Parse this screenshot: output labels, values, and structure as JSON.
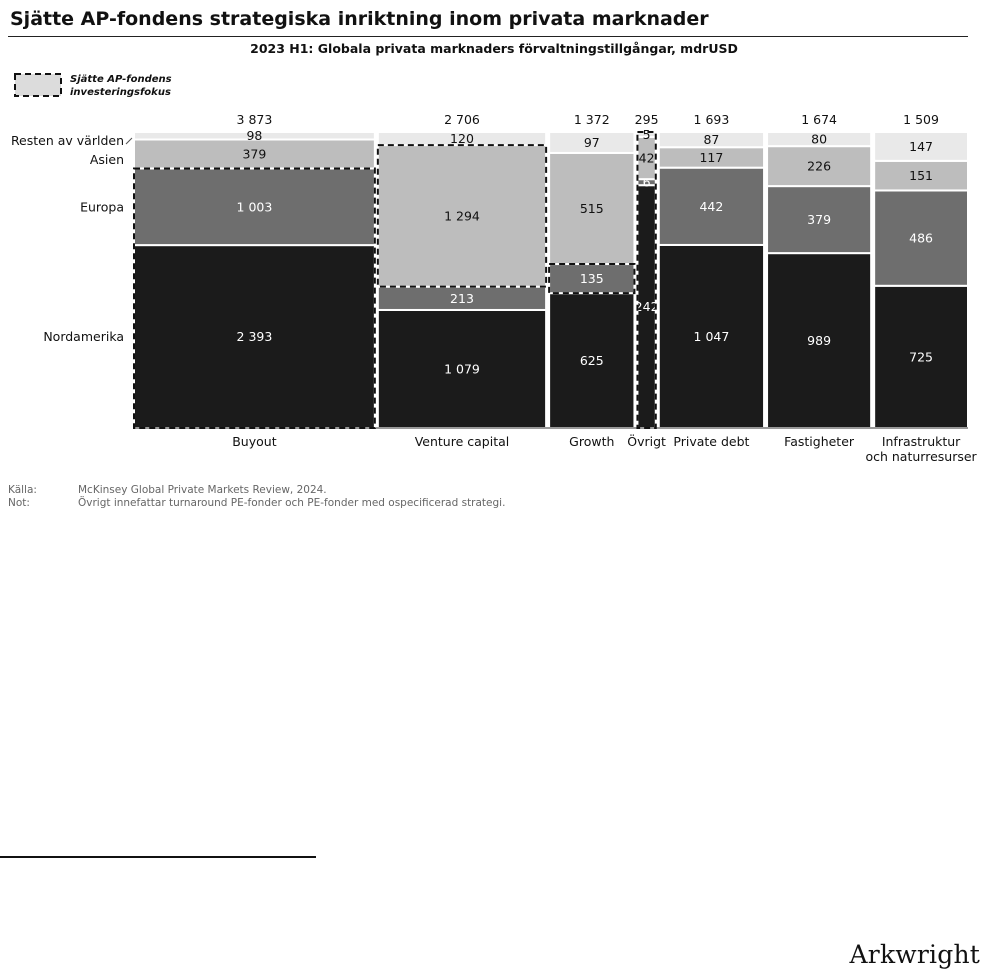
{
  "page": {
    "title": "Sjätte AP-fondens strategiska inriktning inom privata marknader",
    "subtitle": "2023 H1: Globala privata marknaders förvaltningstillgångar, mdrUSD",
    "legend_label_line1": "Sjätte AP-fondens",
    "legend_label_line2": "investeringsfokus",
    "footnotes": [
      {
        "label": "Källa:",
        "text": "McKinsey Global Private Markets Review, 2024."
      },
      {
        "label": "Not:",
        "text": "Övrigt innefattar turnaround PE-fonder och PE-fonder med ospecificerad strategi."
      }
    ],
    "brand": "Arkwright"
  },
  "chart_data": {
    "type": "marimekko",
    "unit": "mdrUSD",
    "categories": [
      "Buyout",
      "Venture capital",
      "Growth",
      "Övrigt",
      "Private debt",
      "Fastigheter",
      "Infrastruktur och naturresurser"
    ],
    "category_label_lines": [
      [
        "Buyout"
      ],
      [
        "Venture capital"
      ],
      [
        "Growth"
      ],
      [
        "Övrigt"
      ],
      [
        "Private debt"
      ],
      [
        "Fastigheter"
      ],
      [
        "Infrastruktur",
        "och naturresurser"
      ]
    ],
    "totals": [
      "3 873",
      "2 706",
      "1 372",
      "295",
      "1 693",
      "1 674",
      "1 509"
    ],
    "series": [
      {
        "name": "Nordamerika",
        "color": "#1b1b1b",
        "values": [
          2393,
          1079,
          625,
          242,
          1047,
          989,
          725
        ],
        "labels": [
          "2 393",
          "1 079",
          "625",
          "242",
          "1 047",
          "989",
          "725"
        ]
      },
      {
        "name": "Europa",
        "color": "#6e6e6e",
        "values": [
          1003,
          213,
          135,
          6,
          442,
          379,
          486
        ],
        "labels": [
          "1 003",
          "213",
          "135",
          "6",
          "442",
          "379",
          "486"
        ]
      },
      {
        "name": "Asien",
        "color": "#bdbdbd",
        "values": [
          379,
          1294,
          515,
          42,
          117,
          226,
          151
        ],
        "labels": [
          "379",
          "1 294",
          "515",
          "42",
          "117",
          "226",
          "151"
        ]
      },
      {
        "name": "Resten av världen",
        "color": "#e9e9e9",
        "values": [
          98,
          120,
          97,
          5,
          87,
          80,
          147
        ],
        "labels": [
          "98",
          "120",
          "97",
          "5",
          "87",
          "80",
          "147"
        ]
      }
    ],
    "focus_highlight": [
      {
        "category": "Buyout",
        "series": [
          "Nordamerika",
          "Europa"
        ]
      },
      {
        "category": "Venture capital",
        "series": [
          "Asien"
        ]
      },
      {
        "category": "Growth",
        "series": [
          "Europa"
        ]
      },
      {
        "category": "Övrigt",
        "series": [
          "Nordamerika",
          "Europa",
          "Asien",
          "Resten av världen"
        ]
      }
    ]
  },
  "colors": {
    "text_dark": "#111111",
    "text_light": "#ffffff",
    "footnote": "#666666"
  }
}
